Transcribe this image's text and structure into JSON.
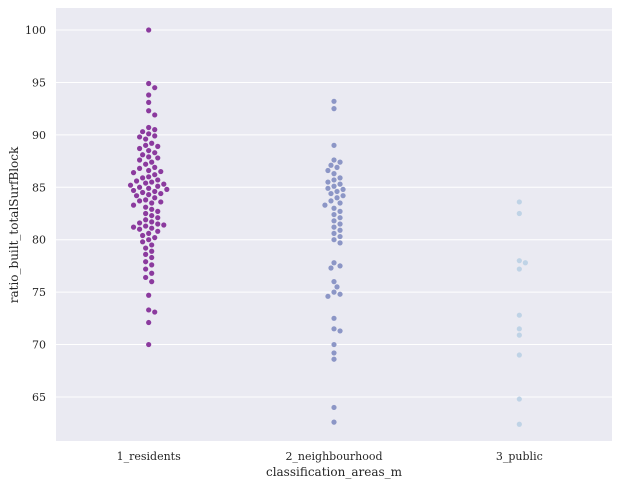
{
  "chart_data": {
    "type": "scatter",
    "subtype": "swarm",
    "xlabel": "classification_areas_m",
    "ylabel": "ratio_built_totalSurfBlock",
    "categories": [
      "1_residents",
      "2_neighbourhood",
      "3_public"
    ],
    "ylim": [
      60.8,
      102.1
    ],
    "yticks": [
      65,
      70,
      75,
      80,
      85,
      90,
      95,
      100
    ],
    "grid": true,
    "background": "#eaeaf2",
    "colors": [
      "#8b3a9e",
      "#8c96c6",
      "#bfd3e6"
    ],
    "series": [
      {
        "name": "1_residents",
        "values": [
          100.0,
          94.9,
          94.5,
          93.8,
          93.1,
          92.3,
          91.9,
          90.7,
          90.5,
          90.3,
          90.1,
          89.9,
          89.8,
          89.6,
          89.2,
          89.0,
          88.9,
          88.7,
          88.5,
          88.3,
          88.1,
          87.9,
          87.8,
          87.6,
          87.4,
          87.2,
          86.9,
          86.8,
          86.6,
          86.5,
          86.4,
          86.2,
          86.0,
          85.9,
          85.7,
          85.6,
          85.5,
          85.4,
          85.3,
          85.2,
          85.1,
          85.0,
          84.9,
          84.8,
          84.7,
          84.6,
          84.5,
          84.4,
          84.3,
          84.2,
          84.0,
          83.8,
          83.7,
          83.6,
          83.5,
          83.3,
          83.1,
          82.9,
          82.7,
          82.5,
          82.3,
          82.1,
          81.9,
          81.7,
          81.6,
          81.5,
          81.4,
          81.3,
          81.2,
          81.1,
          81.0,
          80.8,
          80.6,
          80.4,
          80.2,
          80.0,
          79.8,
          79.5,
          79.2,
          78.9,
          78.6,
          78.3,
          77.9,
          77.6,
          77.2,
          76.8,
          76.4,
          76.0,
          74.7,
          73.3,
          73.1,
          72.1,
          70.0
        ]
      },
      {
        "name": "2_neighbourhood",
        "values": [
          93.2,
          92.5,
          89.0,
          87.6,
          87.4,
          87.1,
          86.9,
          86.6,
          86.3,
          85.9,
          85.7,
          85.5,
          85.3,
          85.1,
          84.9,
          84.8,
          84.6,
          84.4,
          84.2,
          84.0,
          83.7,
          83.5,
          83.3,
          83.0,
          82.7,
          82.4,
          82.1,
          81.8,
          81.5,
          81.2,
          80.9,
          80.6,
          80.3,
          80.0,
          79.7,
          77.8,
          77.5,
          77.3,
          76.0,
          75.5,
          75.0,
          74.8,
          74.6,
          72.5,
          71.5,
          71.3,
          70.0,
          69.2,
          68.6,
          64.0,
          62.6
        ]
      },
      {
        "name": "3_public",
        "values": [
          83.6,
          82.5,
          78.0,
          77.8,
          77.2,
          72.8,
          71.5,
          70.9,
          69.0,
          64.8,
          62.4
        ]
      }
    ]
  }
}
